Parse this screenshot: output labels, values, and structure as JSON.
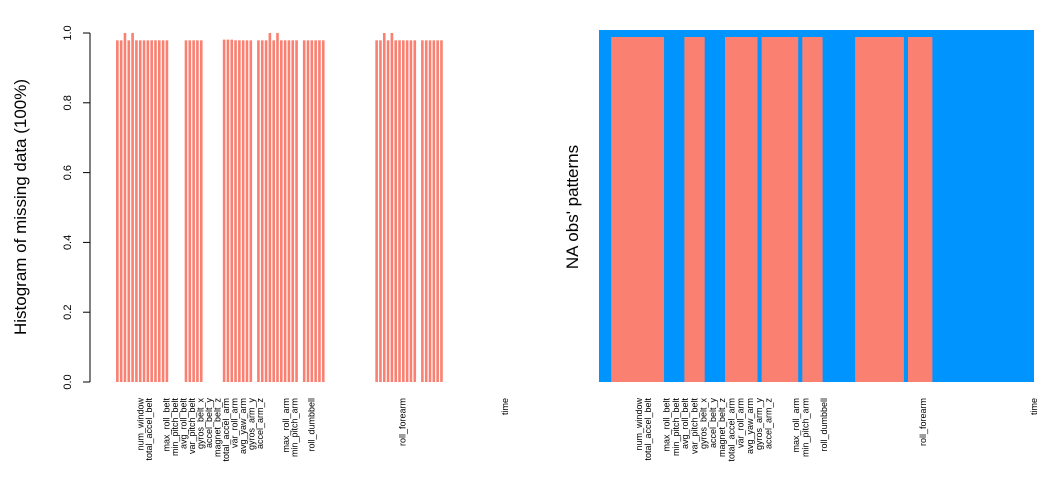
{
  "chart_data": [
    {
      "type": "bar",
      "title": "",
      "xlabel": "",
      "ylabel": "Histogram  of missing data (100%)",
      "ylim": [
        0,
        1
      ],
      "yticks": [
        "0.0",
        "0.2",
        "0.4",
        "0.6",
        "0.8",
        "1.0"
      ],
      "bar_color": "#fa8072",
      "tick_labels": [
        "num_window",
        "total_accel_belt",
        "max_roll_belt",
        "min_pitch_belt",
        "avg_roll_belt",
        "var_pitch_belt",
        "gyros_belt_x",
        "accel_belt_y",
        "magnet_belt_z",
        "total_accel_arm",
        "var_roll_arm",
        "avg_yaw_arm",
        "gyros_arm_y",
        "accel_arm_z",
        "max_roll_arm",
        "min_pitch_arm",
        "roll_dumbbell",
        "roll_forearm",
        "time"
      ],
      "values": [
        0,
        0,
        0,
        0.979,
        0.979,
        1,
        0.979,
        1,
        0.979,
        0.979,
        0.979,
        0.979,
        0.979,
        0.979,
        0.979,
        0.979,
        0.979,
        0,
        0,
        0,
        0,
        0.979,
        0.979,
        0.979,
        0.979,
        0.979,
        0,
        0,
        0,
        0,
        0,
        0.981,
        0.981,
        0.981,
        0.979,
        0.979,
        0.979,
        0.979,
        0.979,
        0,
        0.979,
        0.979,
        0.979,
        1,
        0.979,
        1,
        0.979,
        0.979,
        0.979,
        0.979,
        0.979,
        0,
        0.979,
        0.979,
        0.979,
        0.979,
        0.979,
        0.979,
        0,
        0,
        0,
        0,
        0,
        0,
        0,
        0,
        0,
        0,
        0,
        0,
        0,
        0.979,
        0.979,
        1,
        0.979,
        1,
        0.979,
        0.979,
        0.979,
        0.979,
        0.979,
        0.979,
        0,
        0.979,
        0.979,
        0.979,
        0.979,
        0.979,
        0.979,
        0,
        0,
        0,
        0,
        0,
        0,
        0,
        0,
        0,
        0,
        0,
        0,
        0,
        0,
        0,
        0,
        0,
        0
      ]
    },
    {
      "type": "heatmap",
      "title": "",
      "ylabel": "NA obs' patterns",
      "colors": {
        "missing": "#fa8072",
        "observed": "#0094ff"
      },
      "tick_labels": [
        "num_window",
        "total_accel_belt",
        "max_roll_belt",
        "min_pitch_belt",
        "avg_roll_belt",
        "var_pitch_belt",
        "gyros_belt_x",
        "accel_belt_y",
        "magnet_belt_z",
        "total_accel_arm",
        "var_roll_arm",
        "avg_yaw_arm",
        "gyros_arm_y",
        "accel_arm_z",
        "max_roll_arm",
        "min_pitch_arm",
        "roll_dumbbell",
        "roll_forearm",
        "time"
      ],
      "missing_blocks": [
        {
          "from": 3,
          "to": 16
        },
        {
          "from": 21,
          "to": 26
        },
        {
          "from": 31,
          "to": 39
        },
        {
          "from": 40,
          "to": 49
        },
        {
          "from": 50,
          "to": 55
        },
        {
          "from": 63,
          "to": 75
        },
        {
          "from": 76,
          "to": 82
        }
      ]
    }
  ]
}
